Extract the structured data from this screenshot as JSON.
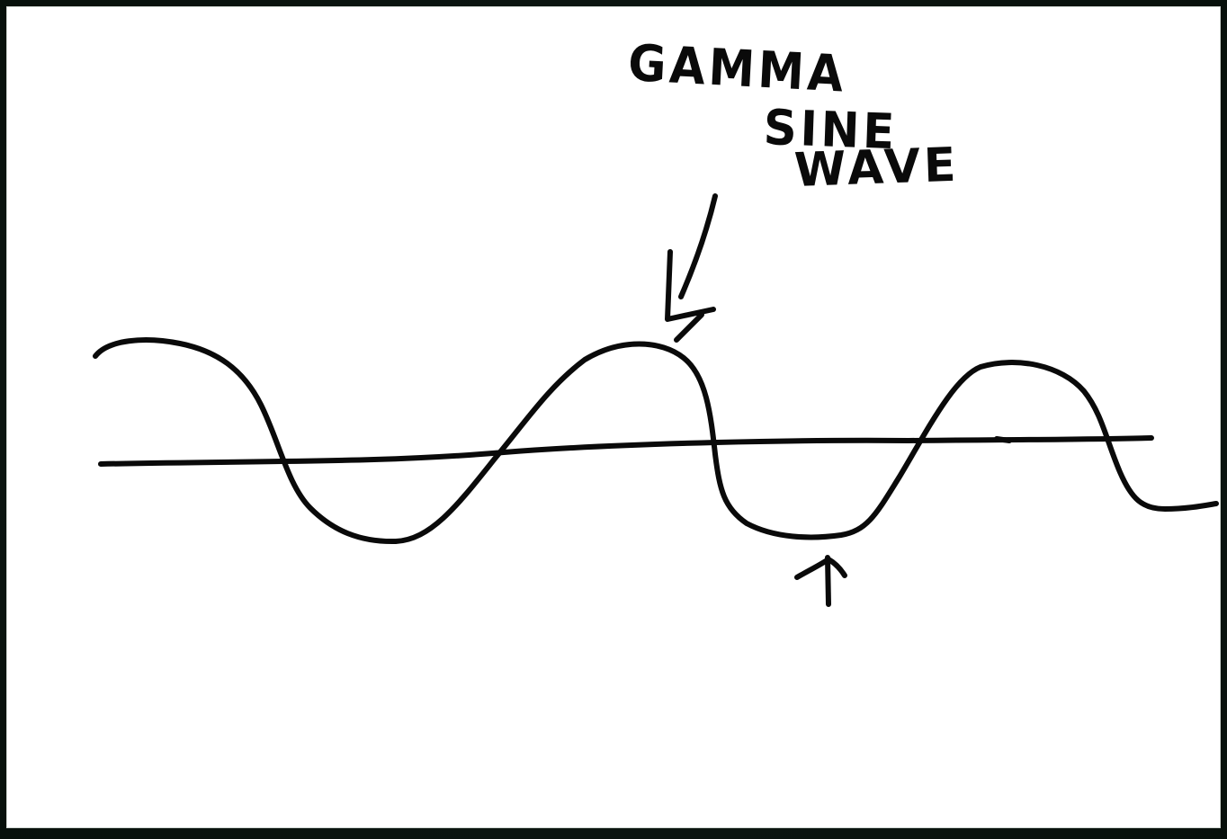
{
  "annotation": {
    "line1": "GAMMA",
    "line2": "SINE",
    "line3": "WAVE"
  },
  "colors": {
    "ink": "#0a0a0a",
    "board": "#ffffff",
    "frame": "#0e1a12"
  }
}
